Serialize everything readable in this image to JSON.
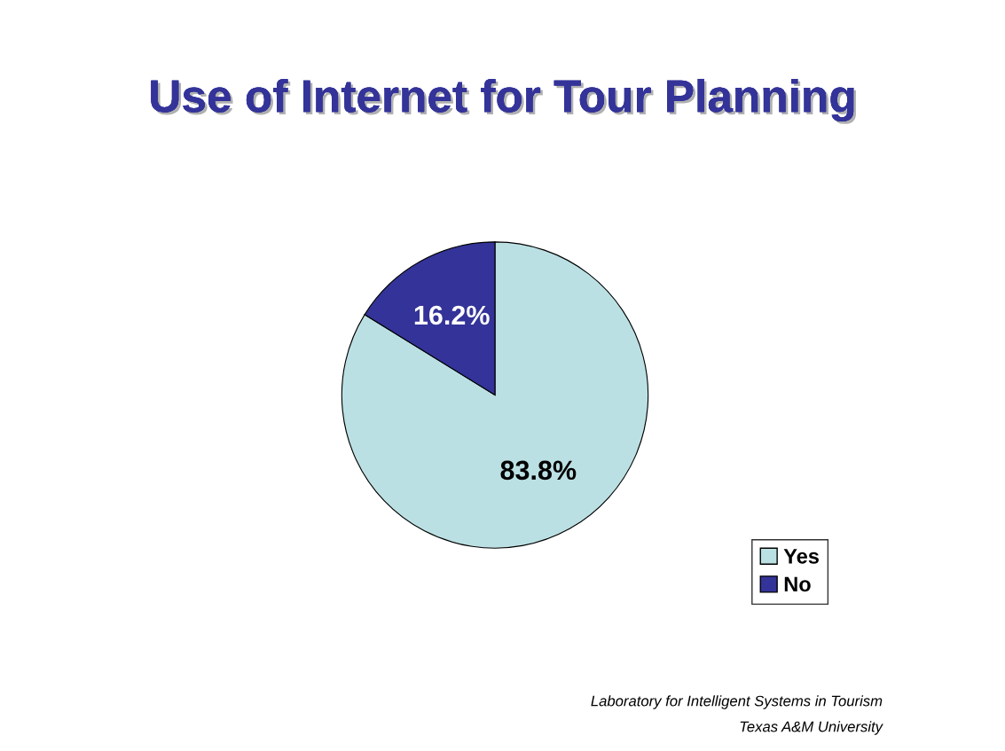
{
  "chart_data": {
    "type": "pie",
    "title": "Use of Internet for Tour Planning",
    "categories": [
      "Yes",
      "No"
    ],
    "values": [
      83.8,
      16.2
    ],
    "colors": [
      "#bbe0e3",
      "#333399"
    ],
    "value_labels": [
      "83.8%",
      "16.2%"
    ],
    "legend": "bottom right",
    "annotations": [
      "Laboratory for Intelligent Systems in Tourism",
      "Texas A&M University"
    ]
  }
}
